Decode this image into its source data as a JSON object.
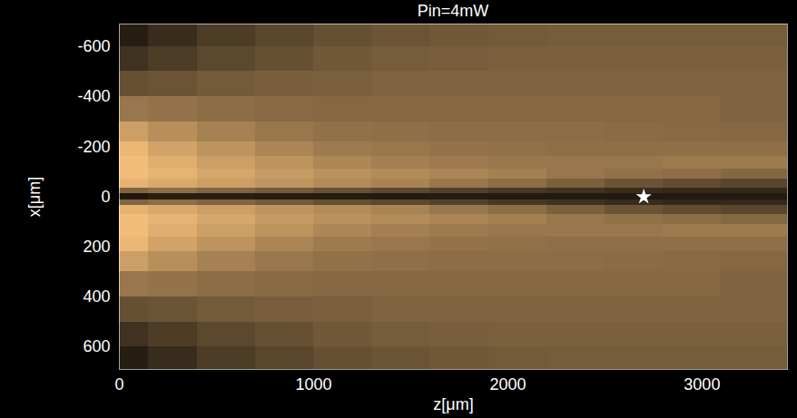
{
  "chart_data": {
    "type": "heatmap",
    "title": "Pin=4mW",
    "x_label": "z[μm]",
    "y_label": "x[μm]",
    "xlim": [
      0,
      3440
    ],
    "ylim": [
      -690,
      690
    ],
    "xticks": [
      0,
      1000,
      2000,
      3000
    ],
    "yticks": [
      -600,
      -400,
      -200,
      0,
      200,
      400,
      600
    ],
    "z_edges": [
      0,
      150,
      400,
      700,
      1000,
      1300,
      1600,
      1900,
      2200,
      2500,
      2800,
      3100,
      3440
    ],
    "x_edges": [
      -690,
      -600,
      -500,
      -400,
      -300,
      -220,
      -160,
      -110,
      -70,
      -35,
      -12,
      12,
      35,
      70,
      110,
      160,
      220,
      300,
      400,
      500,
      600,
      690
    ],
    "cells": [
      [
        0.15,
        0.22,
        0.3,
        0.35,
        0.4,
        0.42,
        0.44,
        0.45,
        0.46,
        0.46,
        0.46,
        0.46
      ],
      [
        0.25,
        0.3,
        0.36,
        0.4,
        0.44,
        0.46,
        0.47,
        0.48,
        0.48,
        0.48,
        0.48,
        0.48
      ],
      [
        0.4,
        0.42,
        0.45,
        0.47,
        0.48,
        0.5,
        0.5,
        0.5,
        0.5,
        0.5,
        0.5,
        0.5
      ],
      [
        0.6,
        0.58,
        0.55,
        0.53,
        0.52,
        0.52,
        0.52,
        0.52,
        0.52,
        0.52,
        0.52,
        0.5
      ],
      [
        0.8,
        0.72,
        0.65,
        0.6,
        0.57,
        0.56,
        0.55,
        0.55,
        0.55,
        0.54,
        0.53,
        0.52
      ],
      [
        0.92,
        0.82,
        0.74,
        0.67,
        0.62,
        0.6,
        0.58,
        0.57,
        0.56,
        0.56,
        0.56,
        0.56
      ],
      [
        0.95,
        0.88,
        0.8,
        0.74,
        0.68,
        0.64,
        0.62,
        0.6,
        0.6,
        0.6,
        0.62,
        0.62
      ],
      [
        0.95,
        0.9,
        0.84,
        0.78,
        0.73,
        0.7,
        0.67,
        0.64,
        0.6,
        0.57,
        0.55,
        0.52
      ],
      [
        0.9,
        0.85,
        0.8,
        0.75,
        0.7,
        0.66,
        0.6,
        0.55,
        0.48,
        0.42,
        0.38,
        0.35
      ],
      [
        0.5,
        0.55,
        0.5,
        0.45,
        0.4,
        0.36,
        0.32,
        0.28,
        0.25,
        0.22,
        0.2,
        0.2
      ],
      [
        0.12,
        0.15,
        0.15,
        0.14,
        0.14,
        0.14,
        0.14,
        0.13,
        0.13,
        0.13,
        0.13,
        0.13
      ],
      [
        0.5,
        0.55,
        0.5,
        0.45,
        0.4,
        0.36,
        0.32,
        0.28,
        0.25,
        0.22,
        0.2,
        0.2
      ],
      [
        0.9,
        0.85,
        0.8,
        0.75,
        0.7,
        0.66,
        0.6,
        0.55,
        0.48,
        0.42,
        0.38,
        0.35
      ],
      [
        0.95,
        0.9,
        0.84,
        0.78,
        0.73,
        0.7,
        0.67,
        0.64,
        0.6,
        0.57,
        0.55,
        0.52
      ],
      [
        0.95,
        0.88,
        0.8,
        0.74,
        0.68,
        0.64,
        0.62,
        0.6,
        0.6,
        0.6,
        0.62,
        0.62
      ],
      [
        0.92,
        0.82,
        0.74,
        0.67,
        0.62,
        0.6,
        0.58,
        0.57,
        0.56,
        0.56,
        0.56,
        0.56
      ],
      [
        0.8,
        0.72,
        0.65,
        0.6,
        0.57,
        0.56,
        0.55,
        0.55,
        0.55,
        0.54,
        0.53,
        0.52
      ],
      [
        0.6,
        0.58,
        0.55,
        0.53,
        0.52,
        0.52,
        0.52,
        0.52,
        0.52,
        0.52,
        0.52,
        0.5
      ],
      [
        0.4,
        0.42,
        0.45,
        0.47,
        0.48,
        0.5,
        0.5,
        0.5,
        0.5,
        0.5,
        0.5,
        0.5
      ],
      [
        0.25,
        0.3,
        0.36,
        0.4,
        0.44,
        0.46,
        0.47,
        0.48,
        0.48,
        0.48,
        0.48,
        0.48
      ],
      [
        0.15,
        0.22,
        0.3,
        0.35,
        0.4,
        0.42,
        0.44,
        0.45,
        0.46,
        0.46,
        0.46,
        0.46
      ]
    ],
    "clim": [
      0,
      1
    ],
    "color": "#ffc77f",
    "marker": "star",
    "points": [
      {
        "x": 2700,
        "y": 0
      }
    ]
  }
}
